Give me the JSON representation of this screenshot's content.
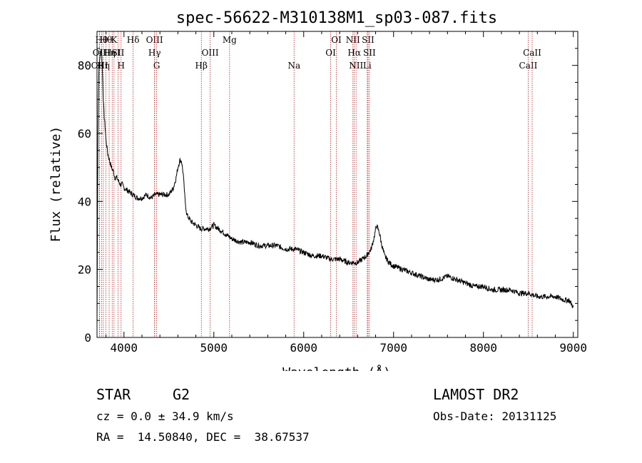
{
  "chart_data": {
    "type": "line",
    "title": "spec-56622-M310138M1_sp03-087.fits",
    "xlabel": "Wavelength (Å)",
    "ylabel": "Flux (relative)",
    "xlim": [
      3700,
      9050
    ],
    "ylim": [
      0,
      90
    ],
    "xticks": [
      4000,
      5000,
      6000,
      7000,
      8000,
      9000
    ],
    "yticks": [
      0,
      20,
      40,
      60,
      80
    ],
    "grid": false,
    "series": [
      {
        "x": [
          3700,
          3710,
          3720,
          3730,
          3740,
          3750,
          3760,
          3770,
          3780,
          3790,
          3800,
          3820,
          3840,
          3860,
          3880,
          3900,
          3920,
          3940,
          3960,
          3980,
          4000,
          4050,
          4100,
          4150,
          4200,
          4250,
          4300,
          4350,
          4400,
          4450,
          4500,
          4550,
          4580,
          4600,
          4620,
          4640,
          4660,
          4680,
          4700,
          4750,
          4800,
          4850,
          4900,
          4950,
          5000,
          5050,
          5100,
          5150,
          5200,
          5300,
          5400,
          5500,
          5600,
          5700,
          5800,
          5900,
          6000,
          6100,
          6200,
          6300,
          6400,
          6500,
          6550,
          6600,
          6650,
          6700,
          6750,
          6780,
          6810,
          6840,
          6870,
          6900,
          6950,
          7000,
          7100,
          7200,
          7300,
          7400,
          7500,
          7600,
          7700,
          7800,
          7900,
          8000,
          8100,
          8200,
          8300,
          8400,
          8500,
          8600,
          8700,
          8800,
          8900,
          8950,
          9000
        ],
        "y": [
          3,
          60,
          78,
          82,
          84,
          85,
          78,
          70,
          65,
          62,
          58,
          54,
          52,
          50,
          49,
          47,
          47,
          46,
          45,
          45,
          44,
          43,
          42,
          41,
          41,
          42,
          41,
          42,
          42,
          42,
          42,
          44,
          47,
          50,
          52,
          52,
          48,
          40,
          36,
          34,
          33,
          32,
          32,
          32,
          33,
          32,
          31,
          30,
          29,
          28,
          28,
          27,
          27,
          27,
          26,
          26,
          25,
          24,
          24,
          23,
          23,
          22,
          22,
          22,
          23,
          24,
          26,
          29,
          33,
          31,
          27,
          24,
          22,
          21,
          20,
          19,
          18,
          17,
          17,
          18,
          17,
          16,
          15,
          15,
          14,
          14,
          14,
          13,
          13,
          12,
          12,
          12,
          11,
          11,
          9
        ]
      }
    ],
    "line_ids": [
      {
        "x": 3727,
        "label": "OII",
        "row": 1
      },
      {
        "x": 3729,
        "label": "OIII",
        "row": 2
      },
      {
        "x": 3750,
        "label": "Hθ",
        "row": 0
      },
      {
        "x": 3770,
        "label": "Hη",
        "row": 2
      },
      {
        "x": 3798,
        "label": "Hθ",
        "row": 0
      },
      {
        "x": 3835,
        "label": "Hη",
        "row": 1
      },
      {
        "x": 3869,
        "label": "HeI",
        "row": 1
      },
      {
        "x": 3889,
        "label": "K",
        "row": 0
      },
      {
        "x": 3934,
        "label": "SII",
        "row": 1
      },
      {
        "x": 3968,
        "label": "H",
        "row": 2
      },
      {
        "x": 4102,
        "label": "Hδ",
        "row": 0
      },
      {
        "x": 4340,
        "label": "OIII",
        "row": 0
      },
      {
        "x": 4341,
        "label": "Hγ",
        "row": 1
      },
      {
        "x": 4364,
        "label": "G",
        "row": 2
      },
      {
        "x": 4861,
        "label": "Hβ",
        "row": 2
      },
      {
        "x": 4959,
        "label": "OIII",
        "row": 1
      },
      {
        "x": 5175,
        "label": "Mg",
        "row": 0
      },
      {
        "x": 5893,
        "label": "Na",
        "row": 2
      },
      {
        "x": 6300,
        "label": "OI",
        "row": 1
      },
      {
        "x": 6363,
        "label": "OI",
        "row": 0
      },
      {
        "x": 6548,
        "label": "NII",
        "row": 0
      },
      {
        "x": 6563,
        "label": "Hα",
        "row": 1
      },
      {
        "x": 6583,
        "label": "NII",
        "row": 2
      },
      {
        "x": 6707,
        "label": "Li",
        "row": 2
      },
      {
        "x": 6716,
        "label": "SII",
        "row": 0
      },
      {
        "x": 6731,
        "label": "SII",
        "row": 1
      },
      {
        "x": 8498,
        "label": "CaII",
        "row": 2
      },
      {
        "x": 8542,
        "label": "CaII",
        "row": 1
      }
    ]
  },
  "footer": {
    "object_class": "STAR",
    "subclass": "G2",
    "redshift": "cz = 0.0 ± 34.9 km/s",
    "coords": "RA =  14.50840, DEC =  38.67537",
    "survey": "LAMOST DR2",
    "obs_date": "Obs-Date: 20131125"
  }
}
